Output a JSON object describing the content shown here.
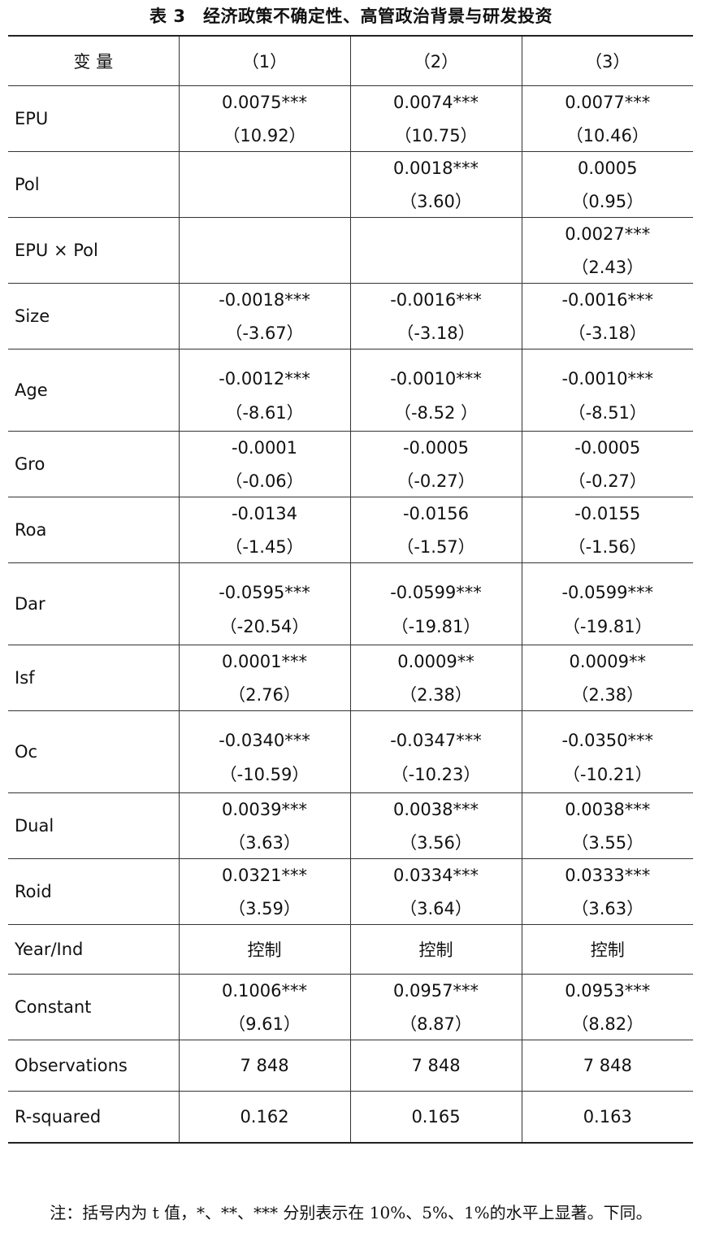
{
  "title": "表 3　经济政策不确定性、高管政治背景与研发投资",
  "header": {
    "variable": "变 量",
    "col1": "（1）",
    "col2": "（2）",
    "col3": "（3）"
  },
  "rows": [
    {
      "name": "EPU",
      "c1": {
        "coef": "0.0075***",
        "t": "（10.92）"
      },
      "c2": {
        "coef": "0.0074***",
        "t": "（10.75）"
      },
      "c3": {
        "coef": "0.0077***",
        "t": "（10.46）"
      }
    },
    {
      "name": "Pol",
      "c1": {
        "coef": "",
        "t": ""
      },
      "c2": {
        "coef": "0.0018***",
        "t": "（3.60）"
      },
      "c3": {
        "coef": "0.0005",
        "t": "（0.95）"
      }
    },
    {
      "name": "EPU × Pol",
      "c1": {
        "coef": "",
        "t": ""
      },
      "c2": {
        "coef": "",
        "t": ""
      },
      "c3": {
        "coef": "0.0027***",
        "t": "（2.43）"
      }
    },
    {
      "name": "Size",
      "c1": {
        "coef": "-0.0018***",
        "t": "（-3.67）"
      },
      "c2": {
        "coef": "-0.0016***",
        "t": "（-3.18）"
      },
      "c3": {
        "coef": "-0.0016***",
        "t": "（-3.18）"
      }
    },
    {
      "name": "Age",
      "c1": {
        "coef": "-0.0012***",
        "t": "（-8.61）"
      },
      "c2": {
        "coef": "-0.0010***",
        "t": "（-8.52 ）"
      },
      "c3": {
        "coef": "-0.0010***",
        "t": "（-8.51）"
      }
    },
    {
      "name": "Gro",
      "c1": {
        "coef": "-0.0001",
        "t": "（-0.06）"
      },
      "c2": {
        "coef": "-0.0005",
        "t": "（-0.27）"
      },
      "c3": {
        "coef": "-0.0005",
        "t": "（-0.27）"
      }
    },
    {
      "name": "Roa",
      "c1": {
        "coef": "-0.0134",
        "t": "（-1.45）"
      },
      "c2": {
        "coef": "-0.0156",
        "t": "（-1.57）"
      },
      "c3": {
        "coef": "-0.0155",
        "t": "（-1.56）"
      }
    },
    {
      "name": "Dar",
      "c1": {
        "coef": "-0.0595***",
        "t": "（-20.54）"
      },
      "c2": {
        "coef": "-0.0599***",
        "t": "（-19.81）"
      },
      "c3": {
        "coef": "-0.0599***",
        "t": "（-19.81）"
      }
    },
    {
      "name": "Isf",
      "c1": {
        "coef": "0.0001***",
        "t": "（2.76）"
      },
      "c2": {
        "coef": "0.0009**",
        "t": "（2.38）"
      },
      "c3": {
        "coef": "0.0009**",
        "t": "（2.38）"
      }
    },
    {
      "name": "Oc",
      "c1": {
        "coef": "-0.0340***",
        "t": "（-10.59）"
      },
      "c2": {
        "coef": "-0.0347***",
        "t": "（-10.23）"
      },
      "c3": {
        "coef": "-0.0350***",
        "t": "（-10.21）"
      }
    },
    {
      "name": "Dual",
      "c1": {
        "coef": "0.0039***",
        "t": "（3.63）"
      },
      "c2": {
        "coef": "0.0038***",
        "t": "（3.56）"
      },
      "c3": {
        "coef": "0.0038***",
        "t": "（3.55）"
      }
    },
    {
      "name": "Roid",
      "c1": {
        "coef": "0.0321***",
        "t": "（3.59）"
      },
      "c2": {
        "coef": "0.0334***",
        "t": "（3.64）"
      },
      "c3": {
        "coef": "0.0333***",
        "t": "（3.63）"
      }
    }
  ],
  "controls": {
    "name": "Year/Ind",
    "c1": "控制",
    "c2": "控制",
    "c3": "控制"
  },
  "constant": {
    "name": "Constant",
    "c1": {
      "coef": "0.1006***",
      "t": "（9.61）"
    },
    "c2": {
      "coef": "0.0957***",
      "t": "（8.87）"
    },
    "c3": {
      "coef": "0.0953***",
      "t": "（8.82）"
    }
  },
  "observations": {
    "name": "Observations",
    "c1": "7 848",
    "c2": "7 848",
    "c3": "7 848"
  },
  "rsquared": {
    "name": "R-squared",
    "c1": "0.162",
    "c2": "0.165",
    "c3": "0.163"
  },
  "note": "注：括号内为 t 值，*、**、*** 分别表示在 10%、5%、1%的水平上显著。下同。"
}
